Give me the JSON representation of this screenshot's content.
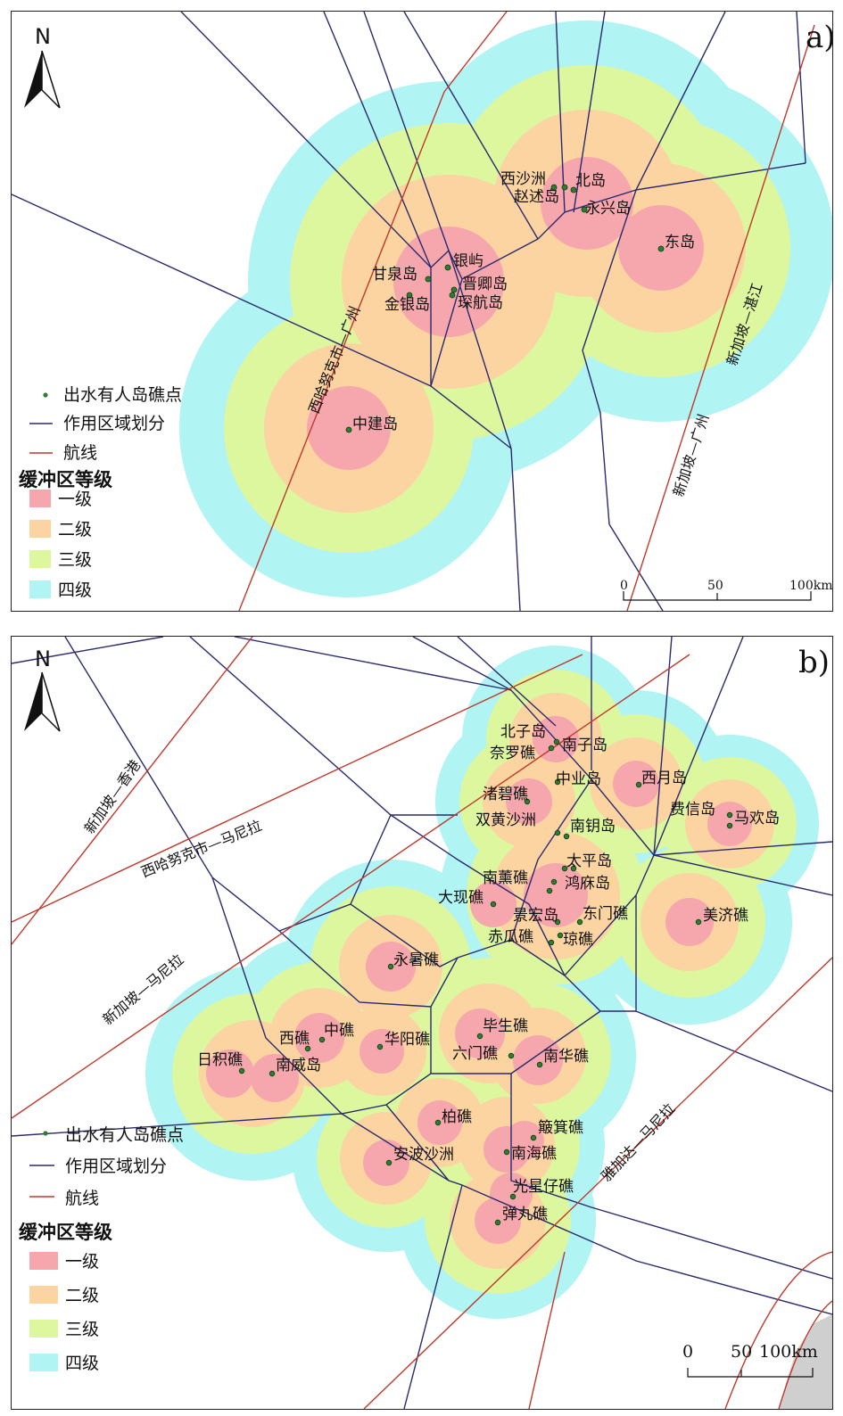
{
  "legend_labels": {
    "point": "出水有人岛礁点",
    "voronoi": "作用区域划分",
    "route": "航线",
    "buffer_title": "缓冲区等级",
    "levels": [
      "一级",
      "二级",
      "三级",
      "四级"
    ]
  },
  "colors": {
    "level1": "#f6a7ad",
    "level2": "#fbd4a1",
    "level3": "#ddf79f",
    "level4": "#b0f4f3",
    "voronoi": "#2a2a6e",
    "route": "#c0392b",
    "point": "#2e7d32",
    "land": "#cfcfcf"
  },
  "panel_a": {
    "corner_label": "a)",
    "north_label": "N",
    "scale": {
      "ticks": [
        "0",
        "50",
        "100km"
      ]
    },
    "islands": [
      "西沙洲",
      "赵述岛",
      "北岛",
      "永兴岛",
      "东岛",
      "银屿",
      "甘泉岛",
      "晋卿岛",
      "金银岛",
      "琛航岛",
      "中建岛"
    ],
    "routes": [
      "西哈努克市—广州",
      "新加坡—湛江",
      "新加坡—广州"
    ]
  },
  "panel_b": {
    "corner_label": "b)",
    "north_label": "N",
    "scale": {
      "ticks": [
        "0",
        "50",
        "100km"
      ]
    },
    "islands": [
      "北子岛",
      "南子岛",
      "奈罗礁",
      "中业岛",
      "西月岛",
      "渚碧礁",
      "费信岛",
      "马欢岛",
      "双黄沙洲",
      "南钥岛",
      "太平岛",
      "南薰礁",
      "鸿庥岛",
      "大现礁",
      "景宏岛",
      "东门礁",
      "美济礁",
      "赤瓜礁",
      "琼礁",
      "永暑礁",
      "西礁",
      "中礁",
      "华阳礁",
      "毕生礁",
      "日积礁",
      "南威岛",
      "六门礁",
      "南华礁",
      "柏礁",
      "簸箕礁",
      "安波沙洲",
      "南海礁",
      "光星仔礁",
      "弹丸礁"
    ],
    "routes": [
      "新加坡—香港",
      "西哈努克市—马尼拉",
      "新加坡—马尼拉",
      "雅加达—马尼拉"
    ]
  }
}
